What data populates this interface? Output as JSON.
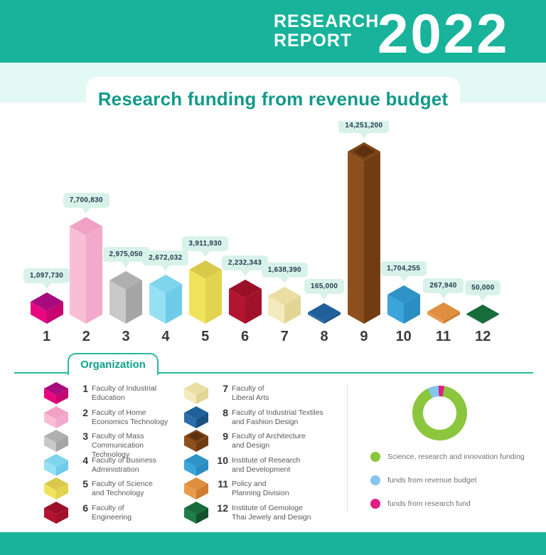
{
  "header": {
    "line1": "RESEARCH",
    "line2": "REPORT",
    "year": "2022"
  },
  "page_title": "Research funding from revenue budget",
  "chart_data": {
    "type": "bar",
    "title": "Research funding from revenue budget",
    "categories": [
      "1",
      "2",
      "3",
      "4",
      "5",
      "6",
      "7",
      "8",
      "9",
      "10",
      "11",
      "12"
    ],
    "values": [
      1097730,
      7700830,
      2975050,
      2672032,
      3911930,
      2232343,
      1638390,
      165000,
      14251200,
      1704255,
      267940,
      50000
    ],
    "value_labels": [
      "1,097,730",
      "7,700,830",
      "2,975,050",
      "2,672,032",
      "3,911,930",
      "2,232,343",
      "1,638,390",
      "165,000",
      "14,251,200",
      "1,704,255",
      "267,940",
      "50,000"
    ],
    "ylim": [
      0,
      14251200
    ],
    "bar_style": "isometric-cube",
    "bar_colors": [
      {
        "top": "#A60C7D",
        "left": "#E8077F",
        "right": "#C60573"
      },
      {
        "top": "#F0A2C5",
        "left": "#F9BDD5",
        "right": "#F2AACA"
      },
      {
        "top": "#AFAFAF",
        "left": "#C9C9C9",
        "right": "#A5A5A5"
      },
      {
        "top": "#7ED5ED",
        "left": "#95E0F3",
        "right": "#6FCCE9"
      },
      {
        "top": "#D8C94B",
        "left": "#F0E35C",
        "right": "#E2D44E"
      },
      {
        "top": "#9C1027",
        "left": "#B3142F",
        "right": "#A1122A"
      },
      {
        "top": "#EADEA5",
        "left": "#F3EABD",
        "right": "#E2D595"
      },
      {
        "top": "#20609A",
        "left": "#2D6DA9",
        "right": "#1A5184"
      },
      {
        "top": "#7B4314",
        "left": "#8D4F1D",
        "right": "#713C12",
        "inner": "#5F300D"
      },
      {
        "top": "#2F93C7",
        "left": "#3BA5DB",
        "right": "#2B8EC3"
      },
      {
        "top": "#DE8F3F",
        "left": "#E89B48",
        "right": "#CE7D30"
      },
      {
        "top": "#176C3A",
        "left": "#1F7D45",
        "right": "#13532C"
      }
    ]
  },
  "organization": {
    "tab_label": "Organization",
    "items": [
      {
        "num": "1",
        "label": "Faculty of Industrial\nEducation"
      },
      {
        "num": "2",
        "label": "Faculty of Home\nEconomics Technology"
      },
      {
        "num": "3",
        "label": "Faculty of Mass\nCommunication Technology"
      },
      {
        "num": "4",
        "label": "Faculty of Business\nAdministration"
      },
      {
        "num": "5",
        "label": "Faculty of Science\nand Technology"
      },
      {
        "num": "6",
        "label": "Faculty of\nEngineering"
      },
      {
        "num": "7",
        "label": "Faculty of\nLiberal Arts"
      },
      {
        "num": "8",
        "label": "Faculty of Industrial Textiles\nand Fashion Design"
      },
      {
        "num": "9",
        "label": "Faculty of Architecture\nand Design"
      },
      {
        "num": "10",
        "label": "Institute of Research\nand Development"
      },
      {
        "num": "11",
        "label": "Policy and\nPlanning Division"
      },
      {
        "num": "12",
        "label": "Institute of Gemologe\nThai Jewely and Design"
      }
    ]
  },
  "donut_chart": {
    "type": "pie",
    "start_angle_deg": 10,
    "slices": [
      {
        "label": "Science, research and innovation funding",
        "color": "#8CC63E",
        "percent": 90
      },
      {
        "label": "funds from revenue budget",
        "color": "#85C6F0",
        "percent": 6.5
      },
      {
        "label": "funds from research fund",
        "color": "#E01D84",
        "percent": 3.5
      }
    ]
  },
  "colors": {
    "teal": "#18B39A",
    "mint": "#E3F9F4",
    "tooltip_bg": "#D8F2EA",
    "title_teal": "#12998A",
    "org_line": "#2BB9A0"
  }
}
